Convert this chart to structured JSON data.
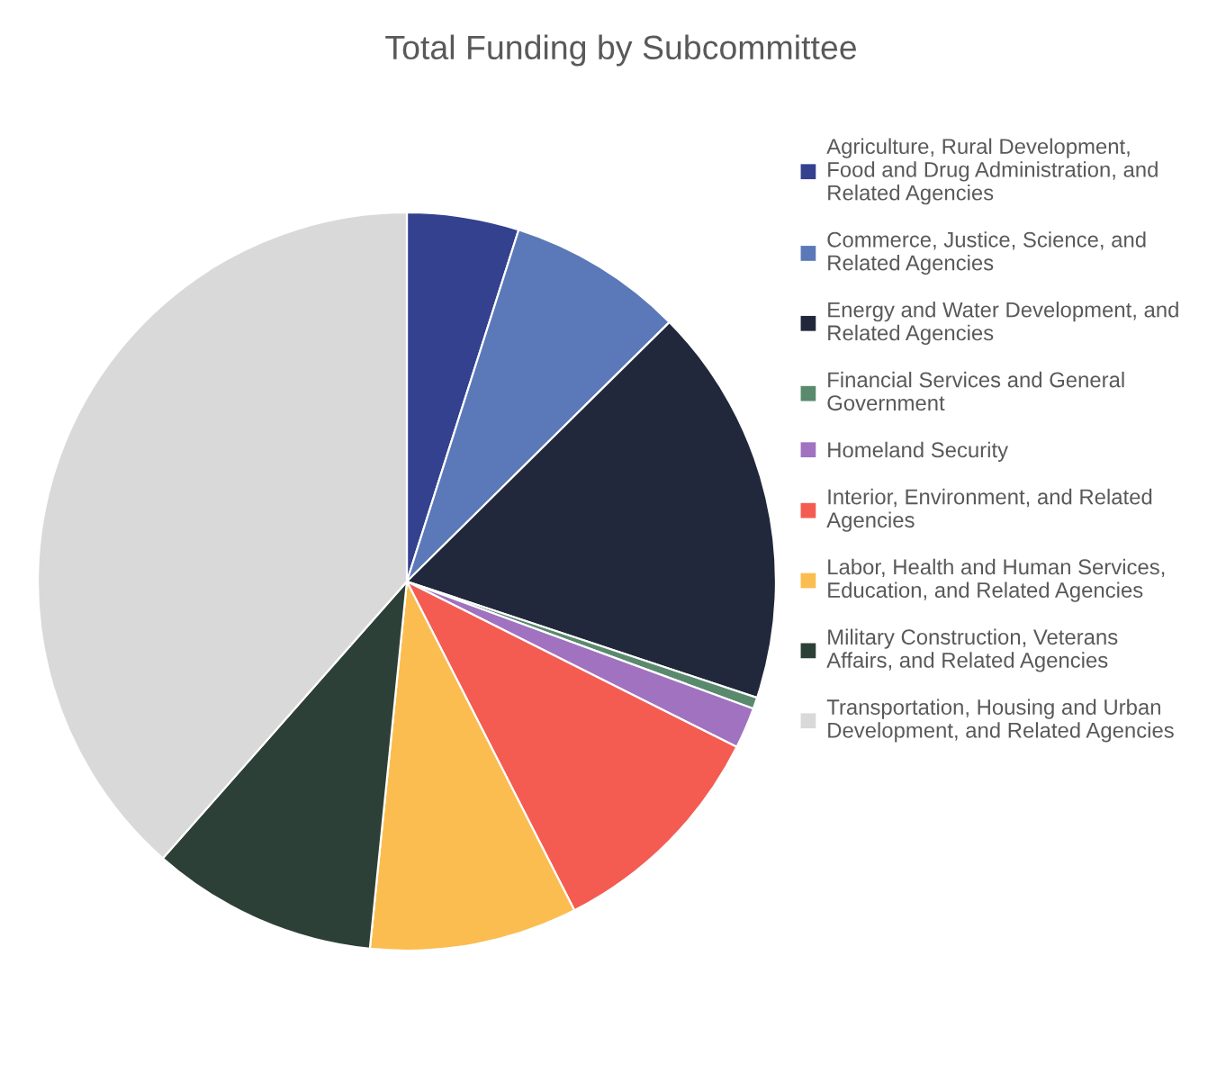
{
  "chart_data": {
    "type": "pie",
    "title": "Total Funding by Subcommittee",
    "categories": [
      "Agriculture, Rural Development, Food and Drug Administration, and Related Agencies",
      "Commerce, Justice, Science, and Related Agencies",
      "Energy and Water Development, and Related Agencies",
      "Financial Services and General Government",
      "Homeland Security",
      "Interior, Environment, and Related Agencies",
      "Labor, Health and Human Services, Education, and Related Agencies",
      "Military Construction, Veterans Affairs, and Related Agencies",
      "Transportation, Housing and Urban Development, and Related Agencies"
    ],
    "values": [
      4.9,
      7.7,
      17.5,
      0.5,
      1.8,
      10.1,
      9.1,
      9.9,
      38.5
    ],
    "colors": [
      "#33418f",
      "#5b79b8",
      "#22283b",
      "#5a8a6e",
      "#a072c0",
      "#f45c52",
      "#fbbd50",
      "#2d4038",
      "#d9d9d9"
    ],
    "legend": "right"
  }
}
